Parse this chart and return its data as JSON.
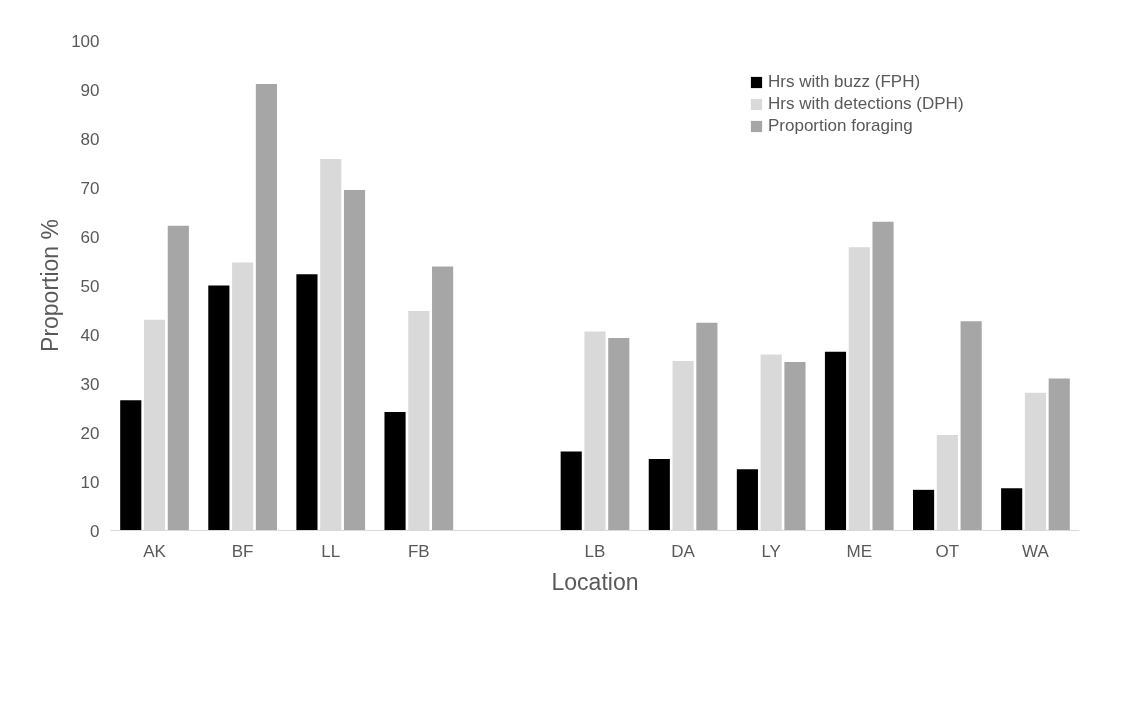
{
  "chart_data": {
    "type": "bar",
    "xlabel": "Location",
    "ylabel": "Proportion %",
    "categories": [
      "AK",
      "BF",
      "LL",
      "FB",
      null,
      "LB",
      "DA",
      "LY",
      "ME",
      "OT",
      "WA"
    ],
    "series": [
      {
        "name": "Hrs with buzz (FPH)",
        "color": "#000000",
        "values": [
          26.6,
          50,
          52.3,
          24.2,
          null,
          16.1,
          14.6,
          12.5,
          36.5,
          8.3,
          8.6
        ]
      },
      {
        "name": "Hrs with detections (DPH)",
        "color": "#d9d9d9",
        "values": [
          43,
          54.7,
          75.8,
          44.8,
          null,
          40.6,
          34.6,
          35.9,
          57.8,
          19.5,
          28.1
        ]
      },
      {
        "name": "Proportion foraging",
        "color": "#a6a6a6",
        "values": [
          62.2,
          91.1,
          69.5,
          53.9,
          null,
          39.3,
          42.4,
          34.4,
          63,
          42.7,
          31
        ]
      }
    ],
    "ylim": [
      0,
      100
    ],
    "yticks": [
      0,
      10,
      20,
      30,
      40,
      50,
      60,
      70,
      80,
      90,
      100
    ],
    "grid": false,
    "legend": "top right"
  }
}
